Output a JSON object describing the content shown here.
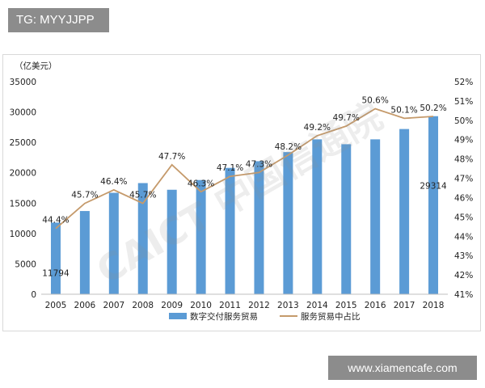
{
  "watermarks": {
    "top_left": "TG: MYYJJPP",
    "bottom_right": "www.xiamencafe.com",
    "diagonal": "CAICT 中国信通院"
  },
  "colors": {
    "bar": "#5b9bd5",
    "line": "#c59a6b",
    "text": "#222222",
    "watermark": "#8c8c8c"
  },
  "chart_data": {
    "type": "bar",
    "title": "",
    "ylabel": "（亿美元）",
    "categories": [
      "2005",
      "2006",
      "2007",
      "2008",
      "2009",
      "2010",
      "2011",
      "2012",
      "2013",
      "2014",
      "2015",
      "2016",
      "2017",
      "2018"
    ],
    "series": [
      {
        "name": "数字交付服务贸易",
        "type": "bar",
        "axis": "left",
        "values": [
          11794,
          13700,
          16700,
          18300,
          17200,
          18800,
          20800,
          21900,
          23400,
          25500,
          24700,
          25500,
          27200,
          29314
        ]
      },
      {
        "name": "服务贸易中占比",
        "type": "line",
        "axis": "right",
        "unit": "%",
        "values": [
          44.4,
          45.7,
          46.4,
          45.7,
          47.7,
          46.3,
          47.1,
          47.3,
          48.2,
          49.2,
          49.7,
          50.6,
          50.1,
          50.2
        ]
      }
    ],
    "bar_data_labels": [
      {
        "index": 0,
        "text": "11794"
      },
      {
        "index": 13,
        "text": "29314"
      }
    ],
    "line_data_labels": [
      "44.4%",
      "45.7%",
      "46.4%",
      "45.7%",
      "47.7%",
      "46.3%",
      "47.1%",
      "47.3%",
      "48.2%",
      "49.2%",
      "49.7%",
      "50.6%",
      "50.1%",
      "50.2%"
    ],
    "y_left": {
      "range": [
        0,
        35000
      ],
      "ticks": [
        "0",
        "5000",
        "10000",
        "15000",
        "20000",
        "25000",
        "30000",
        "35000"
      ]
    },
    "y_right": {
      "range": [
        41,
        52
      ],
      "ticks": [
        "41%",
        "42%",
        "43%",
        "44%",
        "45%",
        "46%",
        "47%",
        "48%",
        "49%",
        "50%",
        "51%",
        "52%"
      ]
    },
    "legend": {
      "position": "bottom-center",
      "items": [
        "数字交付服务贸易",
        "服务贸易中占比"
      ]
    }
  }
}
